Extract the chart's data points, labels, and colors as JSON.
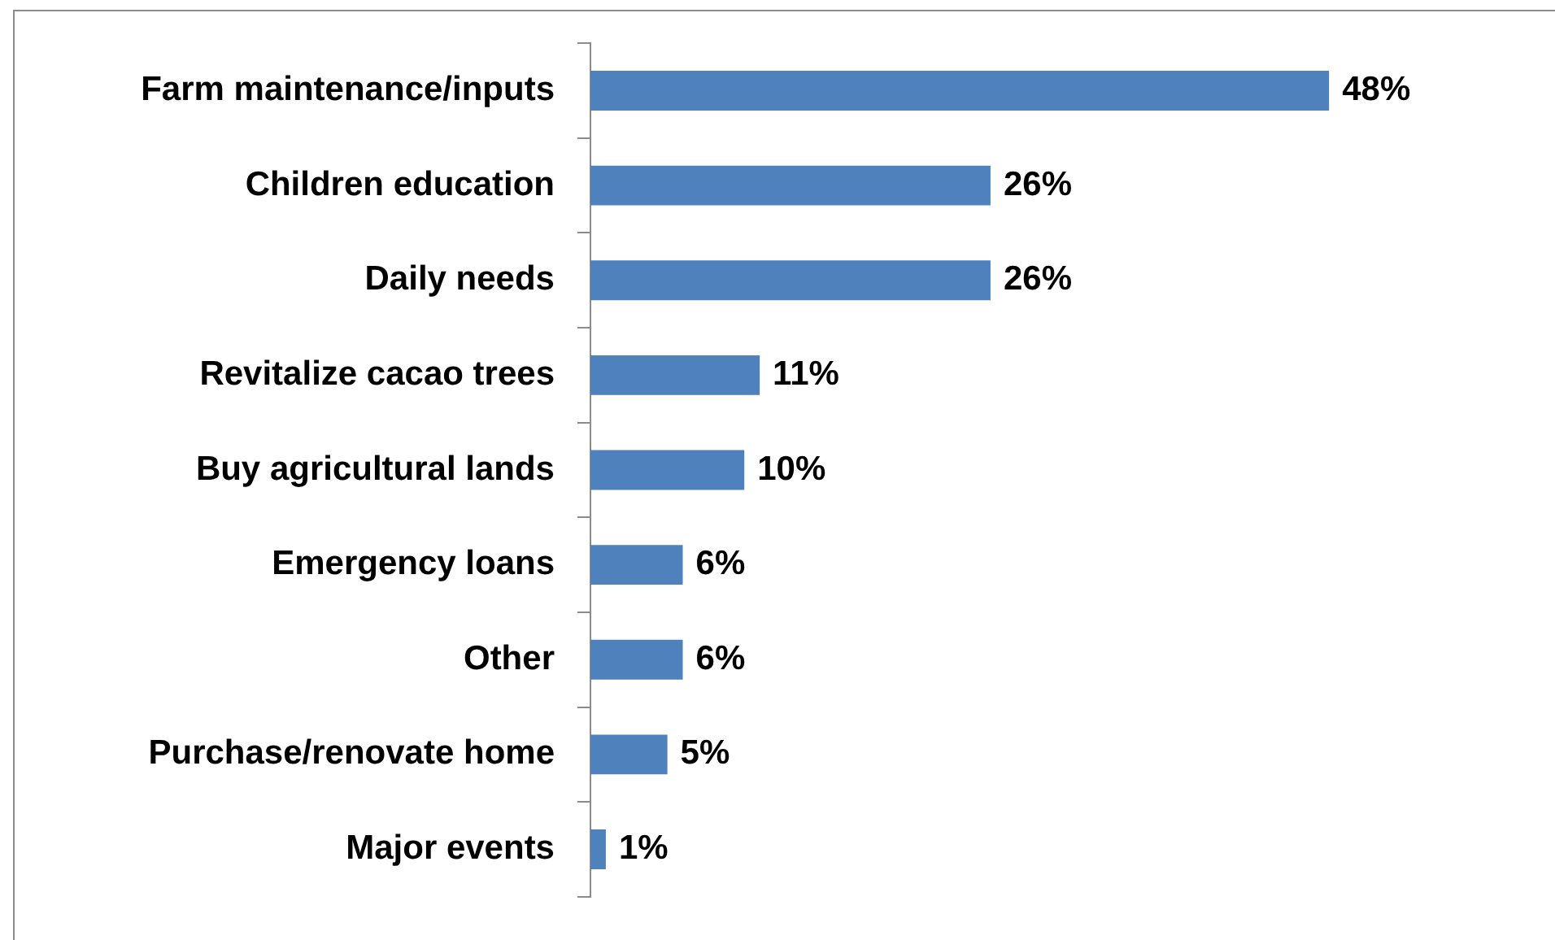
{
  "chart_data": {
    "type": "bar",
    "orientation": "horizontal",
    "categories": [
      "Farm maintenance/inputs",
      "Children education",
      "Daily needs",
      "Revitalize cacao trees",
      "Buy agricultural lands",
      "Emergency loans",
      "Other",
      "Purchase/renovate home",
      "Major events"
    ],
    "values": [
      48,
      26,
      26,
      11,
      10,
      6,
      6,
      5,
      1
    ],
    "value_labels": [
      "48%",
      "26%",
      "26%",
      "11%",
      "10%",
      "6%",
      "6%",
      "5%",
      "1%"
    ],
    "color": "#4f81bd",
    "grid": false,
    "legend": false,
    "tick_labels": "y"
  }
}
